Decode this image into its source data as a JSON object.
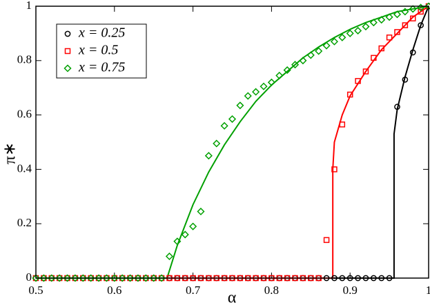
{
  "chart_data": {
    "type": "scatter",
    "x_label": "α",
    "y_label": "π∗",
    "xlim": [
      0.5,
      1
    ],
    "ylim": [
      0,
      1
    ],
    "xticks": [
      0.5,
      0.6,
      0.7,
      0.8,
      0.9,
      1
    ],
    "yticks": [
      0,
      0.2,
      0.4,
      0.6,
      0.8,
      1
    ],
    "legend": "upper left",
    "series": [
      {
        "name": "x = 0.25",
        "color": "#000000",
        "marker": "circle",
        "x": [
          0.5,
          0.51,
          0.52,
          0.53,
          0.54,
          0.55,
          0.56,
          0.57,
          0.58,
          0.59,
          0.6,
          0.61,
          0.62,
          0.63,
          0.64,
          0.65,
          0.66,
          0.67,
          0.68,
          0.69,
          0.7,
          0.71,
          0.72,
          0.73,
          0.74,
          0.75,
          0.76,
          0.77,
          0.78,
          0.79,
          0.8,
          0.81,
          0.82,
          0.83,
          0.84,
          0.85,
          0.86,
          0.87,
          0.88,
          0.89,
          0.9,
          0.91,
          0.92,
          0.93,
          0.94,
          0.95,
          0.96,
          0.97,
          0.98,
          0.99,
          1
        ],
        "values": [
          0,
          0,
          0,
          0,
          0,
          0,
          0,
          0,
          0,
          0,
          0,
          0,
          0,
          0,
          0,
          0,
          0,
          0,
          0,
          0,
          0,
          0,
          0,
          0,
          0,
          0,
          0,
          0,
          0,
          0,
          0,
          0,
          0,
          0,
          0,
          0,
          0,
          0,
          0,
          0,
          0,
          0,
          0,
          0,
          0,
          0,
          0.63,
          0.73,
          0.83,
          0.93,
          1
        ],
        "fit": {
          "x": [
            0.5,
            0.956,
            0.956,
            0.96,
            0.97,
            0.98,
            0.99,
            1
          ],
          "values": [
            0,
            0,
            0.53,
            0.62,
            0.74,
            0.84,
            0.93,
            1
          ]
        }
      },
      {
        "name": "x = 0.5",
        "color": "#ff0000",
        "marker": "square",
        "x": [
          0.5,
          0.51,
          0.52,
          0.53,
          0.54,
          0.55,
          0.56,
          0.57,
          0.58,
          0.59,
          0.6,
          0.61,
          0.62,
          0.63,
          0.64,
          0.65,
          0.66,
          0.67,
          0.68,
          0.69,
          0.7,
          0.71,
          0.72,
          0.73,
          0.74,
          0.75,
          0.76,
          0.77,
          0.78,
          0.79,
          0.8,
          0.81,
          0.82,
          0.83,
          0.84,
          0.85,
          0.86,
          0.87,
          0.88,
          0.89,
          0.9,
          0.91,
          0.92,
          0.93,
          0.94,
          0.95,
          0.96,
          0.97,
          0.98,
          0.99,
          1
        ],
        "values": [
          0,
          0,
          0,
          0,
          0,
          0,
          0,
          0,
          0,
          0,
          0,
          0,
          0,
          0,
          0,
          0,
          0,
          0,
          0,
          0,
          0,
          0,
          0,
          0,
          0,
          0,
          0,
          0,
          0,
          0,
          0,
          0,
          0,
          0,
          0,
          0,
          0,
          0.14,
          0.4,
          0.565,
          0.675,
          0.725,
          0.76,
          0.81,
          0.845,
          0.885,
          0.905,
          0.93,
          0.955,
          0.98,
          1
        ],
        "fit": {
          "x": [
            0.5,
            0.878,
            0.878,
            0.88,
            0.89,
            0.9,
            0.92,
            0.94,
            0.96,
            0.98,
            1
          ],
          "values": [
            0,
            0,
            0.4,
            0.5,
            0.6,
            0.67,
            0.76,
            0.84,
            0.9,
            0.96,
            1
          ]
        }
      },
      {
        "name": "x = 0.75",
        "color": "#00a000",
        "marker": "diamond",
        "x": [
          0.5,
          0.51,
          0.52,
          0.53,
          0.54,
          0.55,
          0.56,
          0.57,
          0.58,
          0.59,
          0.6,
          0.61,
          0.62,
          0.63,
          0.64,
          0.65,
          0.66,
          0.67,
          0.68,
          0.69,
          0.7,
          0.71,
          0.72,
          0.73,
          0.74,
          0.75,
          0.76,
          0.77,
          0.78,
          0.79,
          0.8,
          0.81,
          0.82,
          0.83,
          0.84,
          0.85,
          0.86,
          0.87,
          0.88,
          0.89,
          0.9,
          0.91,
          0.92,
          0.93,
          0.94,
          0.95,
          0.96,
          0.97,
          0.98,
          0.99,
          1
        ],
        "values": [
          0,
          0,
          0,
          0,
          0,
          0,
          0,
          0,
          0,
          0,
          0,
          0,
          0,
          0,
          0,
          0,
          0,
          0.08,
          0.135,
          0.16,
          0.19,
          0.245,
          0.45,
          0.495,
          0.56,
          0.585,
          0.635,
          0.67,
          0.685,
          0.705,
          0.72,
          0.745,
          0.765,
          0.785,
          0.8,
          0.82,
          0.835,
          0.855,
          0.87,
          0.885,
          0.9,
          0.91,
          0.925,
          0.94,
          0.95,
          0.96,
          0.97,
          0.98,
          0.99,
          0.995,
          1
        ],
        "fit": {
          "x": [
            0.5,
            0.667,
            0.68,
            0.7,
            0.72,
            0.74,
            0.76,
            0.78,
            0.8,
            0.82,
            0.84,
            0.86,
            0.88,
            0.9,
            0.92,
            0.94,
            0.96,
            0.98,
            1
          ],
          "values": [
            0,
            0,
            0.12,
            0.27,
            0.39,
            0.49,
            0.575,
            0.65,
            0.71,
            0.76,
            0.81,
            0.85,
            0.885,
            0.915,
            0.94,
            0.96,
            0.98,
            0.99,
            1
          ]
        }
      }
    ]
  }
}
